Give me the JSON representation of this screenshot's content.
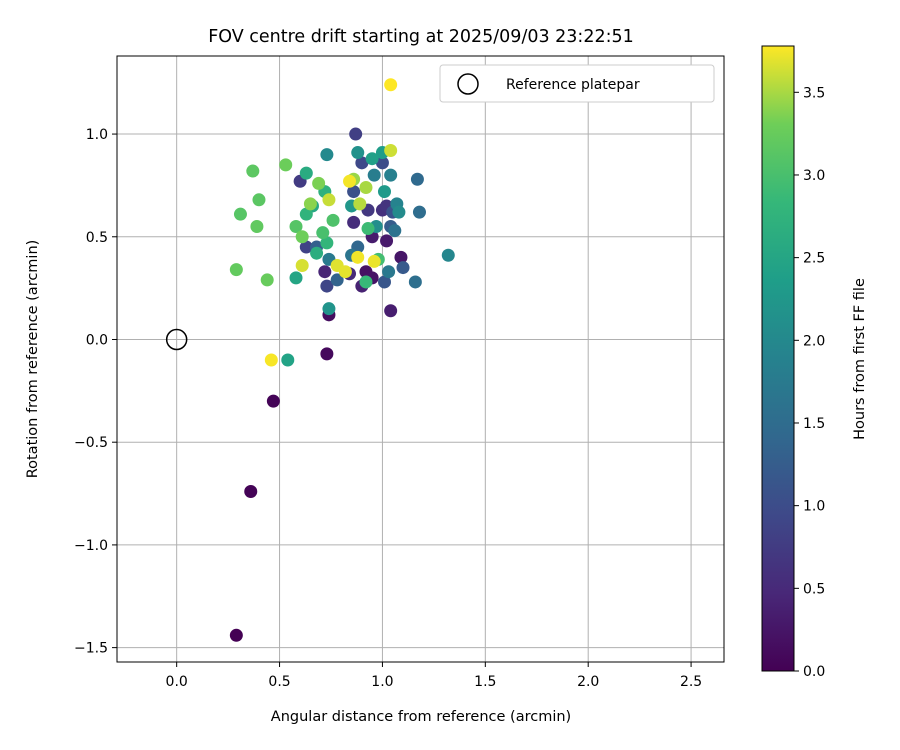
{
  "chart_data": {
    "type": "scatter",
    "title": "FOV centre drift starting at 2025/09/03 23:22:51",
    "xlabel": "Angular distance from reference (arcmin)",
    "ylabel": "Rotation from reference (arcmin)",
    "xlim": [
      -0.29,
      2.66
    ],
    "ylim": [
      -1.57,
      1.38
    ],
    "xticks": [
      0.0,
      0.5,
      1.0,
      1.5,
      2.0,
      2.5
    ],
    "xtick_labels": [
      "0.0",
      "0.5",
      "1.0",
      "1.5",
      "2.0",
      "2.5"
    ],
    "yticks": [
      -1.5,
      -1.0,
      -0.5,
      0.0,
      0.5,
      1.0
    ],
    "ytick_labels": [
      "−1.5",
      "−1.0",
      "−0.5",
      "0.0",
      "0.5",
      "1.0"
    ],
    "grid": true,
    "legend": {
      "position": "upper right",
      "entries": [
        "Reference platepar"
      ]
    },
    "reference_point": {
      "name": "Reference platepar",
      "x": 0.0,
      "y": 0.0,
      "marker": "open-circle"
    },
    "colorbar": {
      "label": "Hours from first FF file",
      "colormap": "viridis",
      "range": [
        0.0,
        3.78
      ],
      "ticks": [
        0.0,
        0.5,
        1.0,
        1.5,
        2.0,
        2.5,
        3.0,
        3.5
      ],
      "tick_labels": [
        "0.0",
        "0.5",
        "1.0",
        "1.5",
        "2.0",
        "2.5",
        "3.0",
        "3.5"
      ]
    },
    "points": [
      [
        0.29,
        -1.44,
        0.0
      ],
      [
        0.36,
        -0.74,
        0.02
      ],
      [
        0.47,
        -0.3,
        0.04
      ],
      [
        0.73,
        -0.07,
        0.1
      ],
      [
        0.74,
        0.12,
        0.15
      ],
      [
        0.92,
        0.33,
        0.2
      ],
      [
        0.95,
        0.3,
        0.22
      ],
      [
        1.09,
        0.4,
        0.25
      ],
      [
        1.02,
        0.48,
        0.3
      ],
      [
        0.95,
        0.5,
        0.33
      ],
      [
        1.04,
        0.14,
        0.35
      ],
      [
        0.9,
        0.26,
        0.4
      ],
      [
        0.72,
        0.33,
        0.45
      ],
      [
        0.84,
        0.32,
        0.5
      ],
      [
        0.86,
        0.57,
        0.55
      ],
      [
        1.0,
        0.63,
        0.6
      ],
      [
        1.02,
        0.65,
        0.65
      ],
      [
        0.93,
        0.63,
        0.7
      ],
      [
        0.6,
        0.77,
        0.75
      ],
      [
        0.87,
        1.0,
        0.8
      ],
      [
        0.63,
        0.45,
        0.85
      ],
      [
        0.73,
        0.26,
        0.9
      ],
      [
        0.9,
        0.86,
        0.95
      ],
      [
        1.0,
        0.86,
        1.0
      ],
      [
        0.86,
        0.72,
        1.05
      ],
      [
        1.05,
        0.62,
        1.1
      ],
      [
        1.01,
        0.28,
        1.15
      ],
      [
        1.1,
        0.35,
        1.2
      ],
      [
        1.04,
        0.55,
        1.25
      ],
      [
        0.68,
        0.45,
        1.3
      ],
      [
        0.78,
        0.29,
        1.35
      ],
      [
        0.88,
        0.45,
        1.4
      ],
      [
        1.17,
        0.78,
        1.45
      ],
      [
        1.18,
        0.62,
        1.5
      ],
      [
        1.16,
        0.28,
        1.55
      ],
      [
        1.06,
        0.53,
        1.6
      ],
      [
        0.85,
        0.41,
        1.65
      ],
      [
        1.03,
        0.33,
        1.7
      ],
      [
        0.74,
        0.39,
        1.75
      ],
      [
        0.96,
        0.8,
        1.8
      ],
      [
        1.04,
        0.8,
        1.85
      ],
      [
        1.07,
        0.66,
        1.9
      ],
      [
        1.32,
        0.41,
        1.95
      ],
      [
        0.73,
        0.9,
        2.0
      ],
      [
        1.08,
        0.62,
        2.05
      ],
      [
        0.97,
        0.55,
        2.1
      ],
      [
        0.88,
        0.91,
        2.15
      ],
      [
        0.74,
        0.15,
        2.2
      ],
      [
        0.85,
        0.65,
        2.25
      ],
      [
        1.01,
        0.72,
        2.3
      ],
      [
        1.0,
        0.91,
        2.35
      ],
      [
        0.95,
        0.88,
        2.4
      ],
      [
        0.54,
        -0.1,
        2.45
      ],
      [
        0.58,
        0.3,
        2.5
      ],
      [
        0.66,
        0.65,
        2.55
      ],
      [
        0.63,
        0.81,
        2.6
      ],
      [
        0.68,
        0.42,
        2.65
      ],
      [
        0.72,
        0.72,
        2.7
      ],
      [
        0.63,
        0.61,
        2.75
      ],
      [
        0.73,
        0.47,
        2.8
      ],
      [
        0.92,
        0.28,
        2.85
      ],
      [
        0.93,
        0.54,
        2.9
      ],
      [
        0.98,
        0.39,
        2.95
      ],
      [
        0.71,
        0.52,
        3.0
      ],
      [
        0.76,
        0.58,
        3.05
      ],
      [
        0.58,
        0.55,
        3.1
      ],
      [
        0.31,
        0.61,
        3.12
      ],
      [
        0.4,
        0.68,
        3.15
      ],
      [
        0.37,
        0.82,
        3.17
      ],
      [
        0.39,
        0.55,
        3.2
      ],
      [
        0.29,
        0.34,
        3.22
      ],
      [
        0.44,
        0.29,
        3.25
      ],
      [
        0.53,
        0.85,
        3.28
      ],
      [
        0.61,
        0.5,
        3.3
      ],
      [
        0.69,
        0.76,
        3.35
      ],
      [
        0.65,
        0.66,
        3.4
      ],
      [
        0.86,
        0.78,
        3.45
      ],
      [
        0.92,
        0.74,
        3.5
      ],
      [
        0.89,
        0.66,
        3.55
      ],
      [
        0.74,
        0.68,
        3.6
      ],
      [
        1.04,
        0.92,
        3.62
      ],
      [
        0.61,
        0.36,
        3.65
      ],
      [
        0.78,
        0.36,
        3.68
      ],
      [
        0.82,
        0.33,
        3.7
      ],
      [
        0.96,
        0.38,
        3.72
      ],
      [
        0.88,
        0.4,
        3.74
      ],
      [
        0.84,
        0.77,
        3.75
      ],
      [
        0.46,
        -0.1,
        3.76
      ],
      [
        1.04,
        1.24,
        3.78
      ]
    ]
  }
}
